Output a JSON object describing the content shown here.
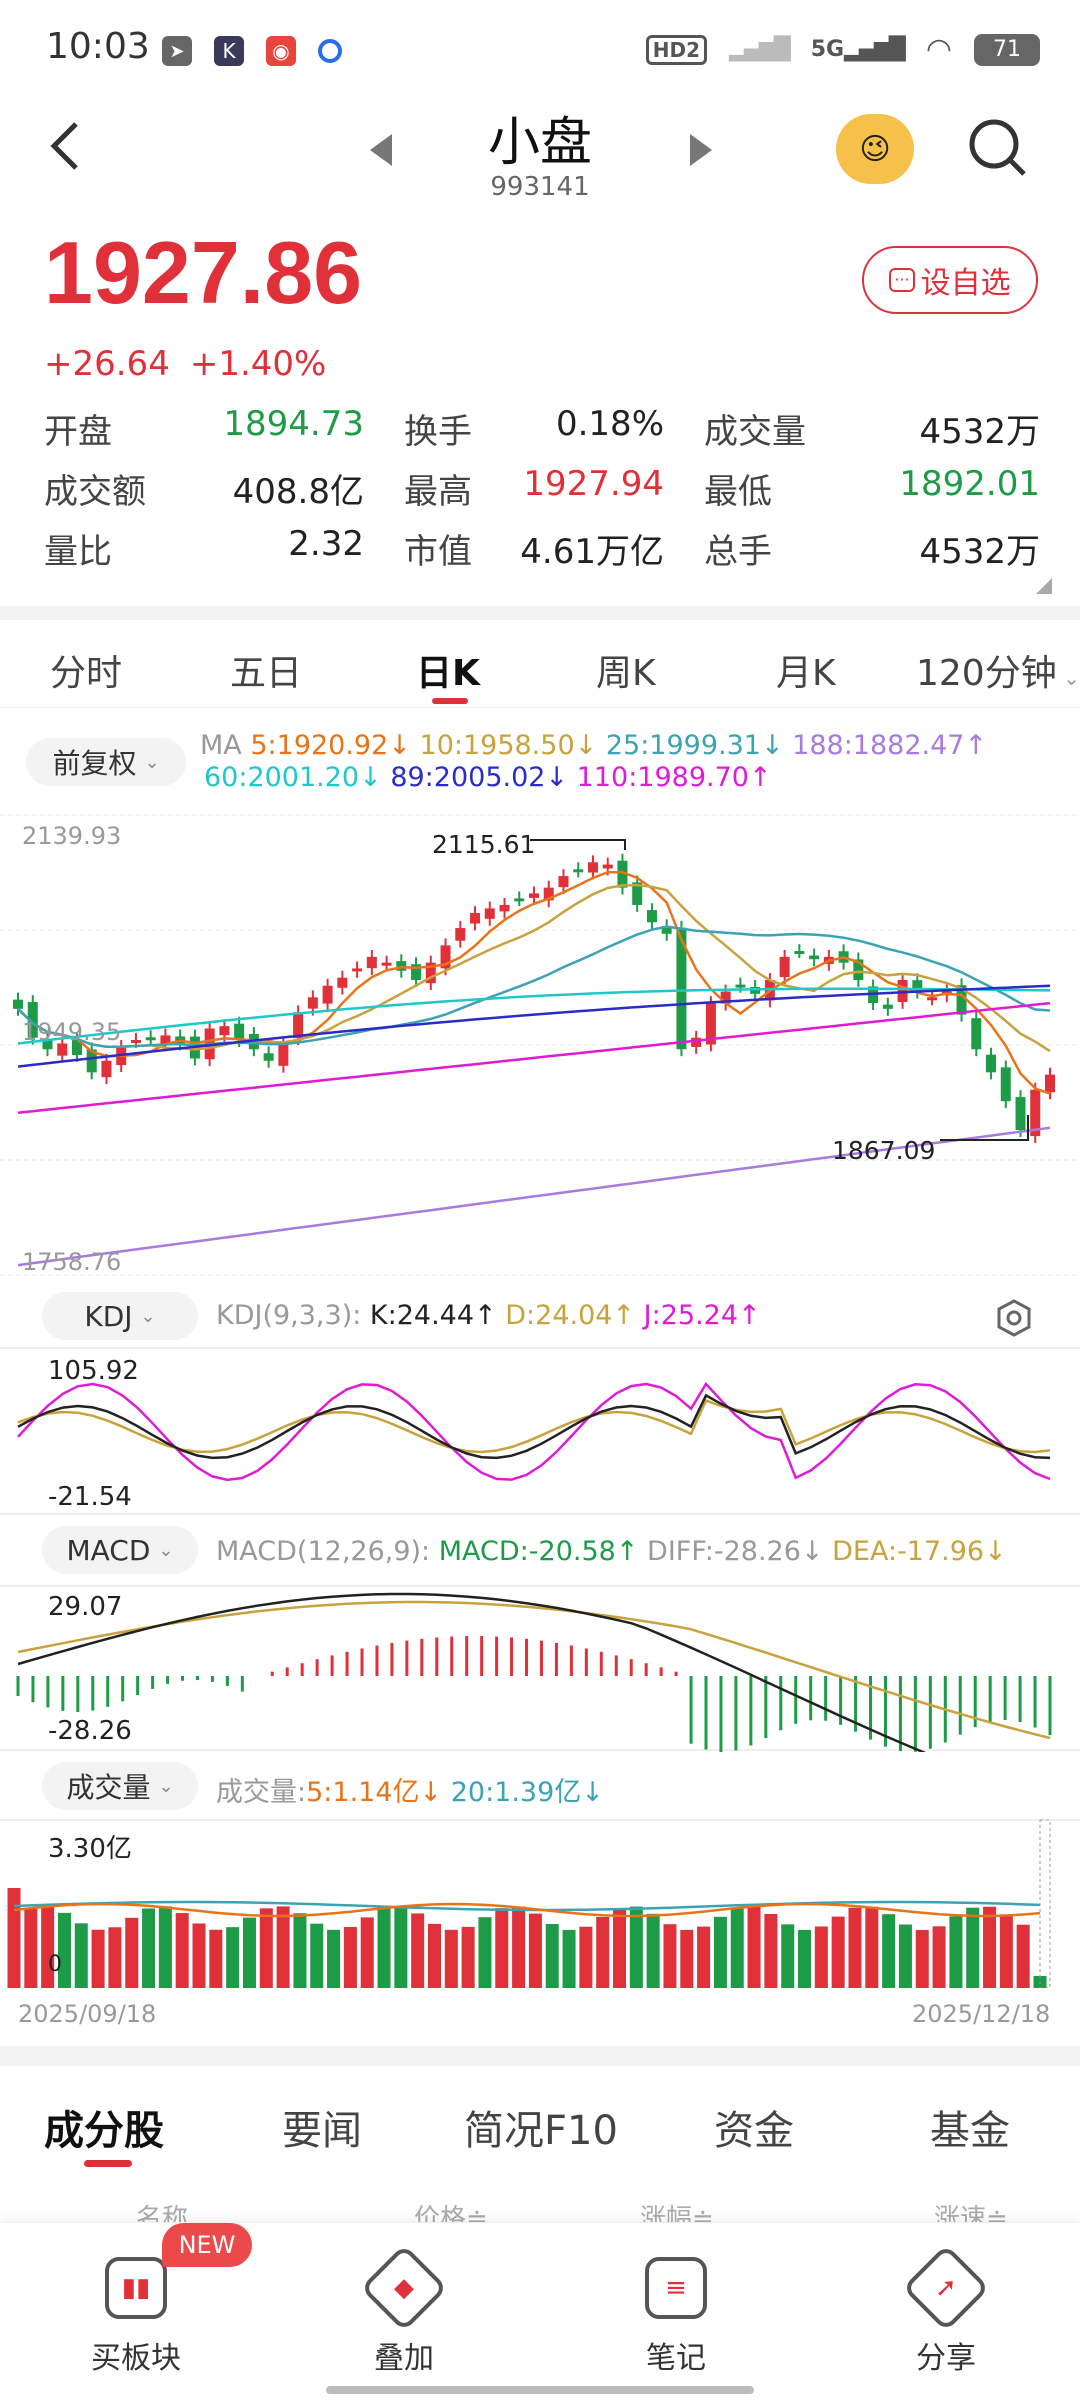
{
  "status_bar": {
    "time": "10:03",
    "signal": "5G",
    "battery": "71",
    "hd": "HD2"
  },
  "header": {
    "title": "小盘",
    "code": "993141"
  },
  "quote": {
    "price": "1927.86",
    "change": "+26.64",
    "change_pct": "+1.40%",
    "add_watch_label": "设自选",
    "stats": [
      [
        {
          "label": "开盘",
          "value": "1894.73",
          "color": "down"
        },
        {
          "label": "换手",
          "value": "0.18%",
          "color": ""
        },
        {
          "label": "成交量",
          "value": "4532万",
          "color": ""
        }
      ],
      [
        {
          "label": "成交额",
          "value": "408.8亿",
          "color": ""
        },
        {
          "label": "最高",
          "value": "1927.94",
          "color": "up"
        },
        {
          "label": "最低",
          "value": "1892.01",
          "color": "down"
        }
      ],
      [
        {
          "label": "量比",
          "value": "2.32",
          "color": ""
        },
        {
          "label": "市值",
          "value": "4.61万亿",
          "color": ""
        },
        {
          "label": "总手",
          "value": "4532万",
          "color": ""
        }
      ]
    ]
  },
  "period_tabs": [
    "分时",
    "五日",
    "日K",
    "周K",
    "月K",
    "120分钟"
  ],
  "active_period": "日K",
  "kline": {
    "adjust_label": "前复权",
    "ma_prefix": "MA",
    "ma5": "5:1920.92↓",
    "ma10": "10:1958.50↓",
    "ma25": "25:1999.31↓",
    "ma188": "188:1882.47↑",
    "ma60": "60:2001.20↓",
    "ma89": "89:2005.02↓",
    "ma110": "110:1989.70↑",
    "y_max": "2139.93",
    "y_min": "1758.76",
    "y_mid": "1949.35",
    "high_mark": "2115.61",
    "low_mark": "1867.09"
  },
  "kdj": {
    "label": "KDJ",
    "params": "KDJ(9,3,3):",
    "k": "K:24.44↑",
    "d": "D:24.04↑",
    "j": "J:25.24↑",
    "y_max": "105.92",
    "y_min": "-21.54"
  },
  "macd": {
    "label": "MACD",
    "params": "MACD(12,26,9):",
    "macd": "MACD:-20.58↑",
    "diff": "DIFF:-28.26↓",
    "dea": "DEA:-17.96↓",
    "y_max": "29.07",
    "y_min": "-28.26"
  },
  "volume": {
    "label": "成交量",
    "prefix": "成交量:",
    "ma5": "5:1.14亿↓",
    "ma20": "20:1.39亿↓",
    "y_max": "3.30亿",
    "y_min": "0",
    "date_start": "2025/09/18",
    "date_end": "2025/12/18"
  },
  "info_tabs": [
    "成分股",
    "要闻",
    "简况F10",
    "资金",
    "基金"
  ],
  "table_headers": [
    "名称",
    "价格≑",
    "涨幅≑",
    "涨速≑"
  ],
  "bottom_nav": [
    {
      "label": "买板块",
      "icon": "chart-icon"
    },
    {
      "label": "叠加",
      "icon": "layers-icon"
    },
    {
      "label": "笔记",
      "icon": "note-icon"
    },
    {
      "label": "分享",
      "icon": "share-icon"
    }
  ],
  "new_badge": "NEW",
  "colors": {
    "up": "#e0313b",
    "down": "#1e9b47",
    "ma5": "#e8741a",
    "ma10": "#c8a23c",
    "ma25": "#3aa3b4",
    "ma188": "#a77be0",
    "ma60": "#1ec8c8",
    "ma89": "#2b2bc8",
    "ma110": "#e01bd6"
  }
}
